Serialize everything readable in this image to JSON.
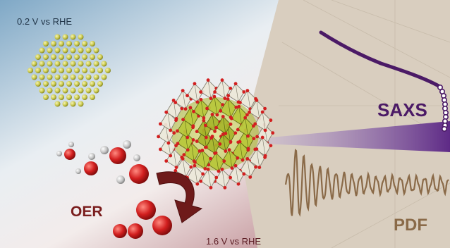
{
  "labels": {
    "potential_top": "0.2 V  vs RHE",
    "potential_bottom": "1.6 V  vs RHE",
    "saxs": "SAXS",
    "pdf": "PDF",
    "oer": "OER"
  },
  "colors": {
    "bg_blue": "#8fb3cc",
    "bg_red": "#a9636b",
    "bg_beige": "#d8cdbd",
    "saxs_curve": "#4b1a66",
    "pdf_curve": "#8a6a48",
    "nanoparticle": "#c9c84a",
    "oxygen": "#d21f1f",
    "hydrogen": "#bdbdbd",
    "arrow": "#6e1a1a",
    "oer_text": "#7a1d1d",
    "saxs_text": "#4b1a66",
    "pdf_text": "#8a6a48",
    "octahedron_light": "#e9e6d6",
    "octahedron_yellow": "#b9c83a"
  },
  "icons": {
    "metallic_nanoparticle": "atom-lattice-icon",
    "cluster": "octahedra-cluster-icon",
    "molecules": "water-oxygen-molecules-icon",
    "arrow": "curved-arrow-icon"
  }
}
